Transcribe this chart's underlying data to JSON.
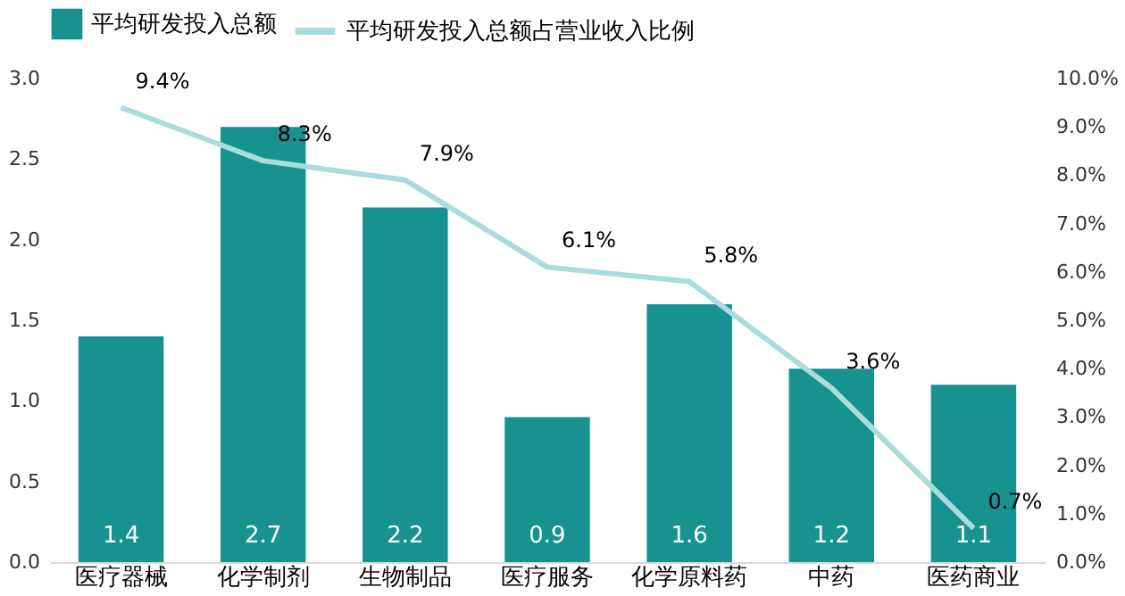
{
  "chart_data": {
    "type": "bar",
    "categories": [
      "医疗器械",
      "化学制剂",
      "生物制品",
      "医疗服务",
      "化学原料药",
      "中药",
      "医药商业"
    ],
    "series": [
      {
        "name": "平均研发投入总额",
        "color": "#179291",
        "values": [
          1.4,
          2.7,
          2.2,
          0.9,
          1.6,
          1.2,
          1.1
        ],
        "value_labels": [
          "1.4",
          "2.7",
          "2.2",
          "0.9",
          "1.6",
          "1.2",
          "1.1"
        ]
      },
      {
        "name": "平均研发投入总额占营业收入比例",
        "type": "line",
        "axis": "y2",
        "color": "#a9dcdc",
        "values": [
          9.4,
          8.3,
          7.9,
          6.1,
          5.8,
          3.6,
          0.7
        ],
        "value_labels": [
          "9.4%",
          "8.3%",
          "7.9%",
          "6.1%",
          "5.8%",
          "3.6%",
          "0.7%"
        ]
      }
    ],
    "ylim": [
      0,
      3
    ],
    "yticks": [
      {
        "value": 0,
        "label": "0.0"
      },
      {
        "value": 0.5,
        "label": "0.5"
      },
      {
        "value": 1,
        "label": "1.0"
      },
      {
        "value": 1.5,
        "label": "1.5"
      },
      {
        "value": 2,
        "label": "2.0"
      },
      {
        "value": 2.5,
        "label": "2.5"
      },
      {
        "value": 3,
        "label": "3.0"
      }
    ],
    "y2lim": [
      0,
      10
    ],
    "y2ticks": [
      {
        "value": 0,
        "label": "0.0%"
      },
      {
        "value": 1,
        "label": "1.0%"
      },
      {
        "value": 2,
        "label": "2.0%"
      },
      {
        "value": 3,
        "label": "3.0%"
      },
      {
        "value": 4,
        "label": "4.0%"
      },
      {
        "value": 5,
        "label": "5.0%"
      },
      {
        "value": 6,
        "label": "6.0%"
      },
      {
        "value": 7,
        "label": "7.0%"
      },
      {
        "value": 8,
        "label": "8.0%"
      },
      {
        "value": 9,
        "label": "9.0%"
      },
      {
        "value": 10,
        "label": "10.0%"
      }
    ],
    "legend": "top",
    "grid": false,
    "marker": "none",
    "line_style": "solid"
  }
}
